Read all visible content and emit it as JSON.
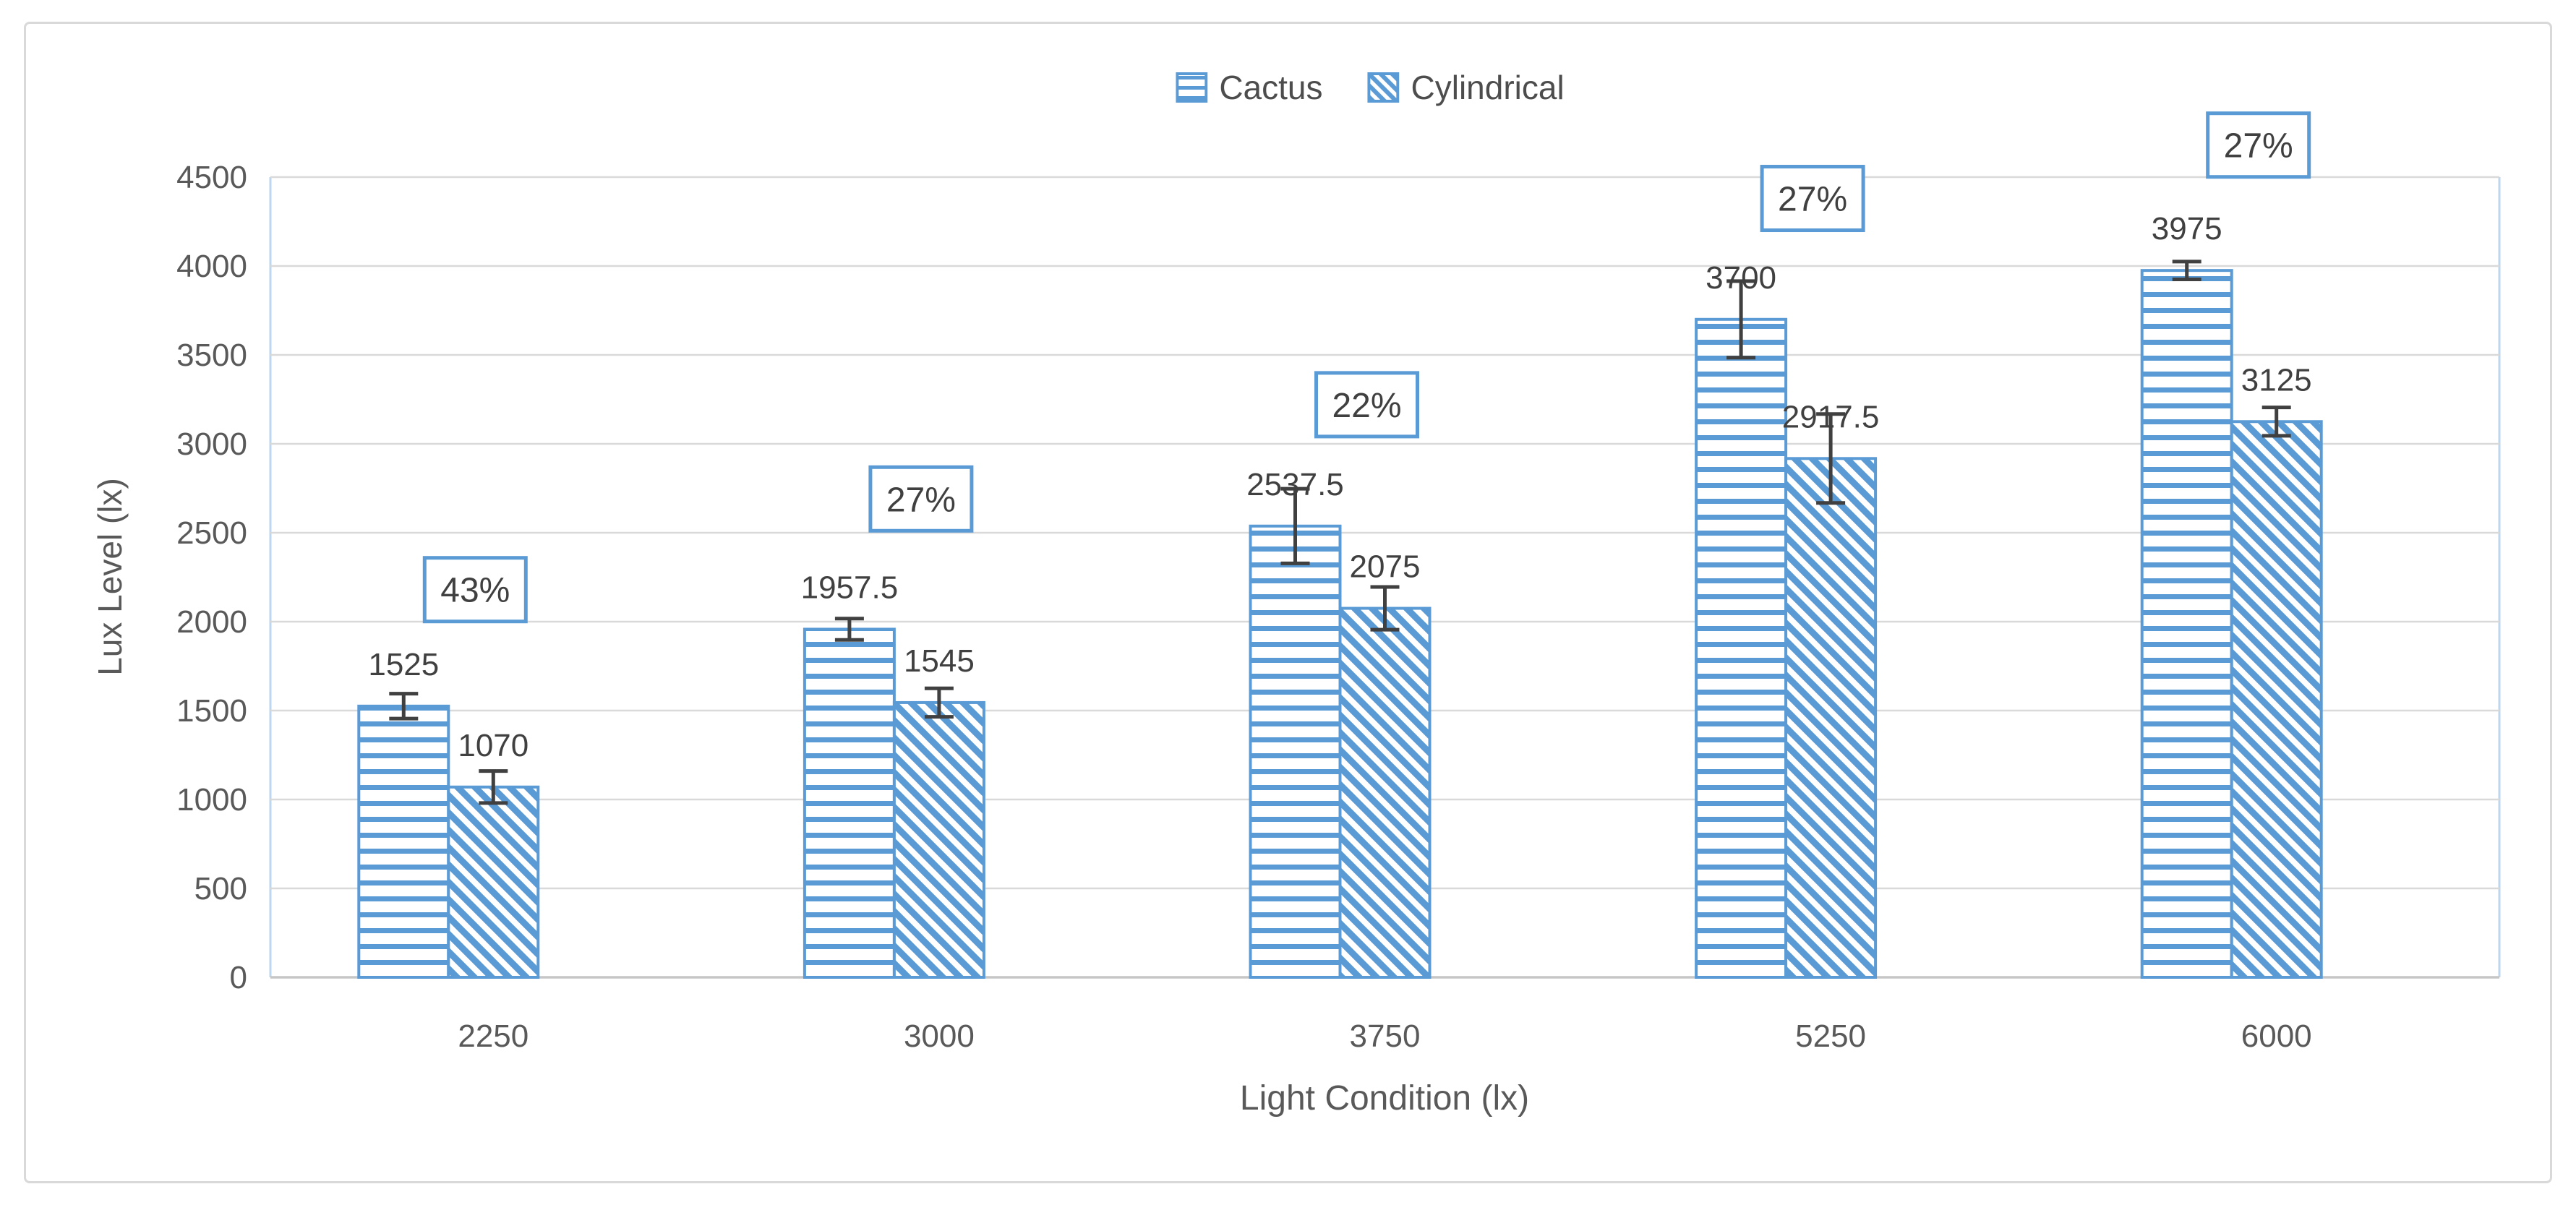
{
  "chart_data": {
    "type": "bar",
    "title": "",
    "xlabel": "Light Condition (lx)",
    "ylabel": "Lux Level (lx)",
    "categories": [
      "2250",
      "3000",
      "3750",
      "5250",
      "6000"
    ],
    "series": [
      {
        "name": "Cactus",
        "pattern": "horizontal-lines",
        "values": [
          1525,
          1957.5,
          2537.5,
          3700,
          3975
        ],
        "labels": [
          "1525",
          "1957.5",
          "2537.5",
          "3700",
          "3975"
        ],
        "errors": [
          70,
          60,
          210,
          215,
          50
        ]
      },
      {
        "name": "Cylindrical",
        "pattern": "diagonal-stripes",
        "values": [
          1070,
          1545,
          2075,
          2917.5,
          3125
        ],
        "labels": [
          "1070",
          "1545",
          "2075",
          "2917.5",
          "3125"
        ],
        "errors": [
          90,
          80,
          120,
          250,
          80
        ]
      }
    ],
    "pct_annotations": [
      {
        "label": "43%",
        "center_value": 2180
      },
      {
        "label": "27%",
        "center_value": 2690
      },
      {
        "label": "22%",
        "center_value": 3220
      },
      {
        "label": "27%",
        "center_value": 4380
      },
      {
        "label": "27%",
        "center_value": 4680
      }
    ],
    "ylim": [
      0,
      4500
    ],
    "ytick_step": 500,
    "ytick_labels": [
      "0",
      "500",
      "1000",
      "1500",
      "2000",
      "2500",
      "3000",
      "3500",
      "4000",
      "4500"
    ],
    "grid": true,
    "error_bars": true,
    "legend": {
      "position": "top",
      "entries": [
        {
          "label": "Cactus",
          "pattern": "horizontal-lines"
        },
        {
          "label": "Cylindrical",
          "pattern": "diagonal-stripes"
        }
      ]
    },
    "colors": {
      "accent": "#5B9BD5",
      "plot_side_line": "#BDD7EE",
      "gridline": "#D9D9D9",
      "x_axis_line": "#C6C6C6",
      "frame_border": "#D9D9D9",
      "error_bar": "#404040",
      "value_label_text": "#404040",
      "pct_text": "#404040",
      "tick_text": "#595959",
      "axis_title_text": "#595959",
      "legend_text": "#4d4d4d",
      "background": "#FFFFFF"
    }
  }
}
